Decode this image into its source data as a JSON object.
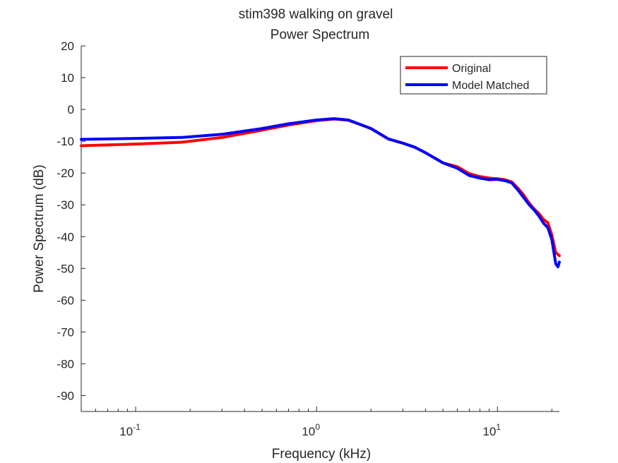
{
  "chart_data": {
    "type": "line",
    "title": "stim398 walking on gravel",
    "subtitle": "Power Spectrum",
    "xlabel": "Frequency (kHz)",
    "ylabel": "Power Spectrum (dB)",
    "x_scale": "log",
    "xlim": [
      0.05,
      22
    ],
    "ylim": [
      -95,
      20
    ],
    "x_ticks": [
      {
        "value": 0.1,
        "base": "10",
        "exp": "-1"
      },
      {
        "value": 1,
        "base": "10",
        "exp": "0"
      },
      {
        "value": 10,
        "base": "10",
        "exp": "1"
      }
    ],
    "y_ticks": [
      20,
      10,
      0,
      -10,
      -20,
      -30,
      -40,
      -50,
      -60,
      -70,
      -80,
      -90
    ],
    "y_tick_labels": [
      "20",
      "10",
      "0",
      "-10",
      "-20",
      "-30",
      "-40",
      "-50",
      "-60",
      "-70",
      "-80",
      "-90"
    ],
    "grid": false,
    "legend_position": "top-right",
    "series": [
      {
        "name": "Original",
        "color": "#ff0000",
        "points": [
          [
            0.05,
            -11.4
          ],
          [
            0.1,
            -10.9
          ],
          [
            0.18,
            -10.3
          ],
          [
            0.3,
            -8.8
          ],
          [
            0.5,
            -6.5
          ],
          [
            0.7,
            -4.9
          ],
          [
            1.0,
            -3.5
          ],
          [
            1.25,
            -3.0
          ],
          [
            1.5,
            -3.4
          ],
          [
            2.0,
            -6.0
          ],
          [
            2.5,
            -9.3
          ],
          [
            3.0,
            -10.6
          ],
          [
            3.5,
            -11.9
          ],
          [
            4.0,
            -13.6
          ],
          [
            5.0,
            -16.8
          ],
          [
            6.0,
            -18.0
          ],
          [
            7.0,
            -20.2
          ],
          [
            8.0,
            -21.1
          ],
          [
            9.0,
            -21.6
          ],
          [
            10.0,
            -21.8
          ],
          [
            11.0,
            -22.1
          ],
          [
            12.0,
            -22.8
          ],
          [
            13.0,
            -24.8
          ],
          [
            14.0,
            -27.0
          ],
          [
            15.0,
            -29.5
          ],
          [
            16.0,
            -31.4
          ],
          [
            17.0,
            -32.8
          ],
          [
            18.0,
            -34.6
          ],
          [
            19.0,
            -35.6
          ],
          [
            20.0,
            -39.5
          ],
          [
            21.0,
            -45.0
          ],
          [
            22.0,
            -46.0
          ]
        ]
      },
      {
        "name": "Model Matched",
        "color": "#0000ff",
        "points": [
          [
            0.05,
            -9.4
          ],
          [
            0.1,
            -9.1
          ],
          [
            0.18,
            -8.8
          ],
          [
            0.3,
            -7.8
          ],
          [
            0.5,
            -6.0
          ],
          [
            0.7,
            -4.5
          ],
          [
            1.0,
            -3.3
          ],
          [
            1.25,
            -2.9
          ],
          [
            1.5,
            -3.3
          ],
          [
            2.0,
            -6.0
          ],
          [
            2.5,
            -9.3
          ],
          [
            3.0,
            -10.6
          ],
          [
            3.5,
            -11.9
          ],
          [
            4.0,
            -13.6
          ],
          [
            5.0,
            -16.8
          ],
          [
            6.0,
            -18.5
          ],
          [
            7.0,
            -20.8
          ],
          [
            8.0,
            -21.6
          ],
          [
            9.0,
            -22.1
          ],
          [
            10.0,
            -22.0
          ],
          [
            11.0,
            -22.4
          ],
          [
            12.0,
            -23.1
          ],
          [
            13.0,
            -25.4
          ],
          [
            14.0,
            -27.8
          ],
          [
            15.0,
            -30.0
          ],
          [
            16.0,
            -31.7
          ],
          [
            17.0,
            -33.6
          ],
          [
            18.0,
            -35.8
          ],
          [
            19.0,
            -37.2
          ],
          [
            20.0,
            -41.0
          ],
          [
            21.0,
            -48.5
          ],
          [
            21.6,
            -49.5
          ],
          [
            22.0,
            -48.0
          ]
        ]
      }
    ]
  }
}
